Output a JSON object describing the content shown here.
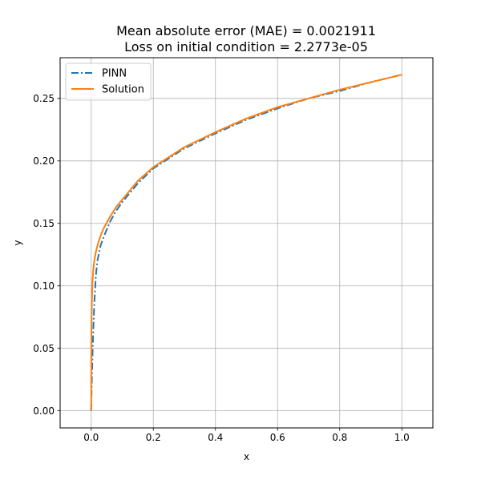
{
  "chart_data": {
    "type": "line",
    "title": [
      "Mean absolute error (MAE) = 0.0021911",
      "Loss on initial condition = 2.2773e-05"
    ],
    "xlabel": "x",
    "ylabel": "y",
    "xlim": [
      -0.1,
      1.1
    ],
    "ylim": [
      -0.0137,
      0.2826
    ],
    "xticks": [
      0.0,
      0.2,
      0.4,
      0.6,
      0.8,
      1.0
    ],
    "xtick_labels": [
      "0.0",
      "0.2",
      "0.4",
      "0.6",
      "0.8",
      "1.0"
    ],
    "yticks": [
      0.0,
      0.05,
      0.1,
      0.15,
      0.2,
      0.25
    ],
    "ytick_labels": [
      "0.00",
      "0.05",
      "0.10",
      "0.15",
      "0.20",
      "0.25"
    ],
    "grid": true,
    "legend_position": "upper-left",
    "series": [
      {
        "name": "PINN",
        "color": "#1f77b4",
        "style": "dashdot",
        "x": [
          0.0,
          0.002,
          0.005,
          0.008,
          0.01,
          0.015,
          0.02,
          0.03,
          0.04,
          0.06,
          0.08,
          0.1,
          0.15,
          0.2,
          0.3,
          0.4,
          0.5,
          0.6,
          0.7,
          0.8,
          0.9,
          1.0
        ],
        "y": [
          0.0,
          0.025,
          0.052,
          0.073,
          0.086,
          0.108,
          0.12,
          0.132,
          0.139,
          0.151,
          0.16,
          0.167,
          0.182,
          0.194,
          0.21,
          0.222,
          0.233,
          0.242,
          0.25,
          0.256,
          0.263,
          0.269
        ]
      },
      {
        "name": "Solution",
        "color": "#ff7f0e",
        "style": "solid",
        "x": [
          0.0,
          0.0005,
          0.001,
          0.002,
          0.004,
          0.006,
          0.01,
          0.015,
          0.02,
          0.03,
          0.04,
          0.06,
          0.08,
          0.1,
          0.15,
          0.2,
          0.3,
          0.4,
          0.5,
          0.6,
          0.7,
          0.8,
          0.9,
          1.0
        ],
        "y": [
          0.0,
          0.054,
          0.068,
          0.085,
          0.103,
          0.111,
          0.12,
          0.127,
          0.132,
          0.14,
          0.146,
          0.155,
          0.163,
          0.169,
          0.184,
          0.195,
          0.211,
          0.223,
          0.234,
          0.243,
          0.25,
          0.257,
          0.263,
          0.269
        ]
      }
    ]
  }
}
